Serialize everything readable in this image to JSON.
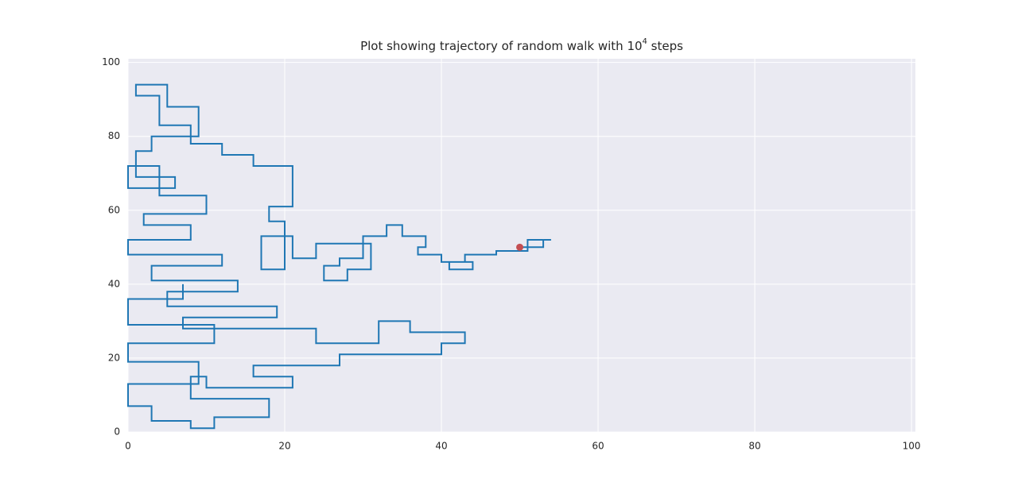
{
  "chart_data": {
    "type": "line",
    "title": {
      "text_before": "Plot showing trajectory of random walk with ",
      "base": "10",
      "exponent": "4",
      "text_after": " steps"
    },
    "x": [
      50,
      53,
      53,
      54,
      51,
      51,
      47,
      47,
      43,
      43,
      41,
      41,
      44,
      44,
      40,
      40,
      37,
      37,
      38,
      38,
      35,
      35,
      33,
      33,
      30,
      30,
      27,
      27,
      25,
      25,
      28,
      28,
      31,
      31,
      24,
      24,
      21,
      21,
      17,
      17,
      20,
      20,
      18,
      18,
      21,
      21,
      16,
      16,
      12,
      12,
      8,
      8,
      4,
      4,
      1,
      1,
      5,
      5,
      9,
      9,
      3,
      3,
      1,
      1,
      6,
      6,
      0,
      0,
      4,
      4,
      10,
      10,
      2,
      2,
      8,
      8,
      0,
      0,
      12,
      12,
      3,
      3,
      14,
      14,
      5,
      5,
      19,
      19,
      7,
      7,
      24,
      24,
      32,
      32,
      36,
      36,
      43,
      43,
      40,
      40,
      27,
      27,
      16,
      16,
      21,
      21,
      10,
      10,
      8,
      8,
      18,
      18,
      11,
      11,
      8,
      8,
      3,
      3,
      0,
      0,
      9,
      9,
      0,
      0,
      11,
      11,
      0,
      0,
      7,
      7
    ],
    "values": [
      50,
      50,
      52,
      52,
      52,
      49,
      49,
      48,
      48,
      46,
      46,
      44,
      44,
      46,
      46,
      48,
      48,
      50,
      50,
      53,
      53,
      56,
      56,
      53,
      53,
      47,
      47,
      45,
      45,
      41,
      41,
      44,
      44,
      51,
      51,
      47,
      47,
      53,
      53,
      44,
      44,
      57,
      57,
      61,
      61,
      72,
      72,
      75,
      75,
      78,
      78,
      83,
      83,
      91,
      91,
      94,
      94,
      88,
      88,
      80,
      80,
      76,
      76,
      69,
      69,
      66,
      66,
      72,
      72,
      64,
      64,
      59,
      59,
      56,
      56,
      52,
      52,
      48,
      48,
      45,
      45,
      41,
      41,
      38,
      38,
      34,
      34,
      31,
      31,
      28,
      28,
      24,
      24,
      30,
      30,
      27,
      27,
      24,
      24,
      21,
      21,
      18,
      18,
      15,
      15,
      12,
      12,
      15,
      15,
      9,
      9,
      4,
      4,
      1,
      1,
      3,
      3,
      7,
      7,
      13,
      13,
      19,
      19,
      24,
      24,
      29,
      29,
      36,
      36,
      40
    ],
    "color": "#1f77b4",
    "start": {
      "x": 50,
      "y": 50,
      "color": "#c44e52"
    },
    "xlim": [
      0,
      100.5
    ],
    "ylim": [
      0,
      101
    ],
    "xticks": [
      0,
      20,
      40,
      60,
      80,
      100
    ],
    "yticks": [
      0,
      20,
      40,
      60,
      80,
      100
    ],
    "grid": true,
    "background": "#eaeaf2"
  }
}
